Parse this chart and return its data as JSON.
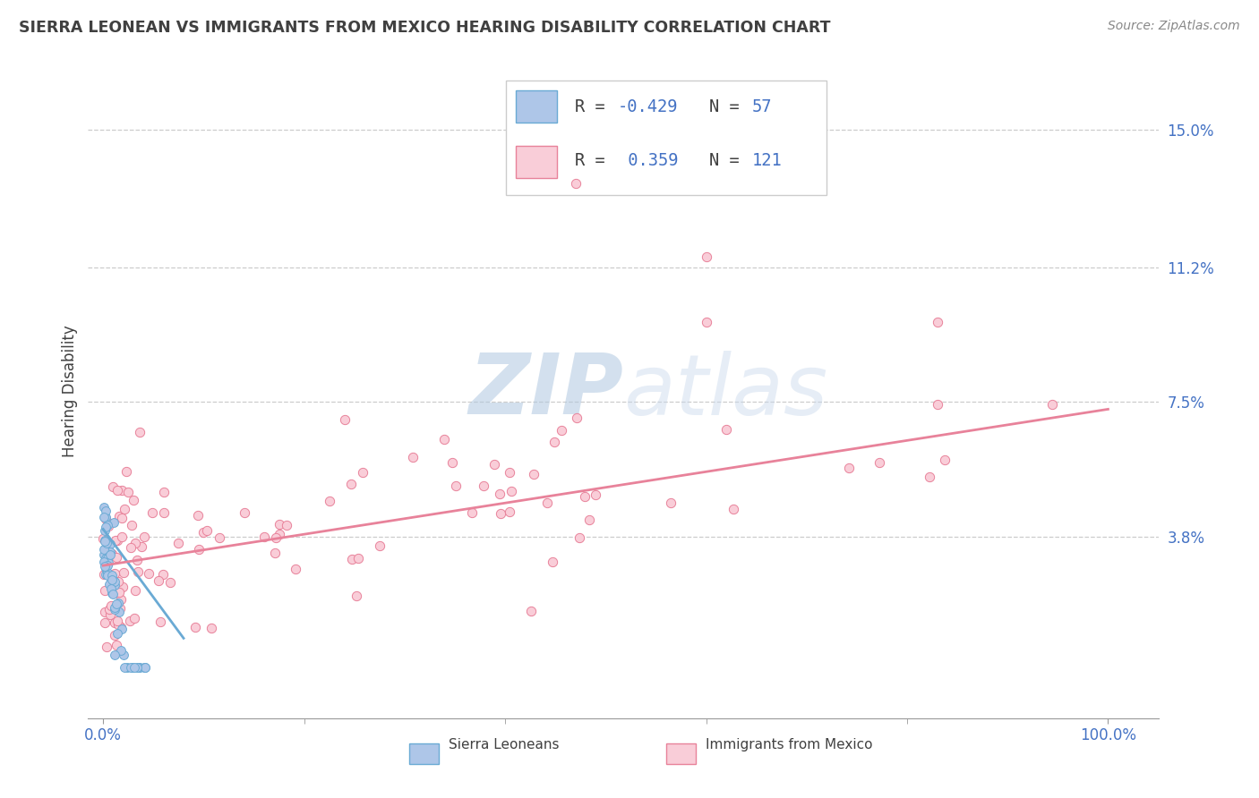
{
  "title": "SIERRA LEONEAN VS IMMIGRANTS FROM MEXICO HEARING DISABILITY CORRELATION CHART",
  "source": "Source: ZipAtlas.com",
  "ylabel": "Hearing Disability",
  "ytick_vals": [
    0.0,
    0.038,
    0.075,
    0.112,
    0.15
  ],
  "ytick_labels": [
    "",
    "3.8%",
    "7.5%",
    "11.2%",
    "15.0%"
  ],
  "xtick_vals": [
    0.0,
    1.0
  ],
  "xtick_labels": [
    "0.0%",
    "100.0%"
  ],
  "xlim": [
    -0.015,
    1.05
  ],
  "ylim": [
    -0.012,
    0.168
  ],
  "blue_color": "#aec6e8",
  "blue_edge_color": "#6aaad4",
  "pink_color": "#f9cdd8",
  "pink_edge_color": "#e8829a",
  "blue_line_color": "#6aaad4",
  "pink_line_color": "#e8829a",
  "text_dark": "#404040",
  "text_blue": "#4472c4",
  "grid_color": "#cccccc",
  "watermark_color": "#c8d8ec",
  "background_color": "#ffffff",
  "source_color": "#888888",
  "legend_label1": "R = -0.429   N =  57",
  "legend_label2": "R =  0.359   N = 121",
  "bottom_label1": "Sierra Leoneans",
  "bottom_label2": "Immigrants from Mexico"
}
